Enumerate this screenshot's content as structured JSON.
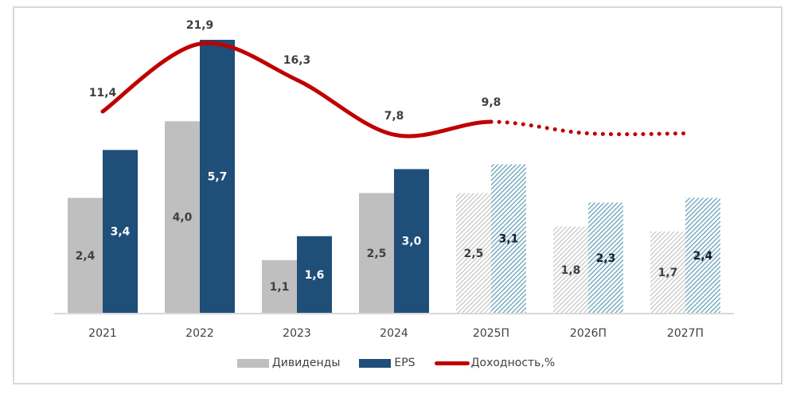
{
  "chart_data": {
    "type": "bar",
    "title": "",
    "xlabel": "",
    "ylabel": "",
    "categories": [
      "2021",
      "2022",
      "2023",
      "2024",
      "2025П",
      "2026П",
      "2027П"
    ],
    "forecast_from_index": 4,
    "series": [
      {
        "name": "Дивиденды",
        "kind": "bar",
        "color": "#bfbfbf",
        "values": [
          2.4,
          4.0,
          1.1,
          2.5,
          2.5,
          1.8,
          1.7
        ],
        "labels": [
          "2,4",
          "4,0",
          "1,1",
          "2,5",
          "2,5",
          "1,8",
          "1,7"
        ]
      },
      {
        "name": "EPS",
        "kind": "bar",
        "color": "#1f4e79",
        "forecast_color": "#5b9bb5",
        "values": [
          3.4,
          5.7,
          1.6,
          3.0,
          3.1,
          2.3,
          2.4
        ],
        "labels": [
          "3,4",
          "5,7",
          "1,6",
          "3,0",
          "3,1",
          "2,3",
          "2,4"
        ]
      },
      {
        "name": "Доходность,%",
        "kind": "line",
        "color": "#c00000",
        "values": [
          11.4,
          21.9,
          16.3,
          7.8,
          9.8,
          8.0,
          8.0
        ],
        "labels": [
          "11,4",
          "21,9",
          "16,3",
          "7,8",
          "9,8",
          "",
          ""
        ],
        "solid_until_index": 4
      }
    ],
    "bar_ylim": [
      0,
      5.7
    ],
    "line_ylim": [
      0,
      21.9
    ],
    "grid": false,
    "legend": {
      "position": "bottom",
      "entries": [
        "Дивиденды",
        "EPS",
        "Доходность,%"
      ]
    }
  }
}
